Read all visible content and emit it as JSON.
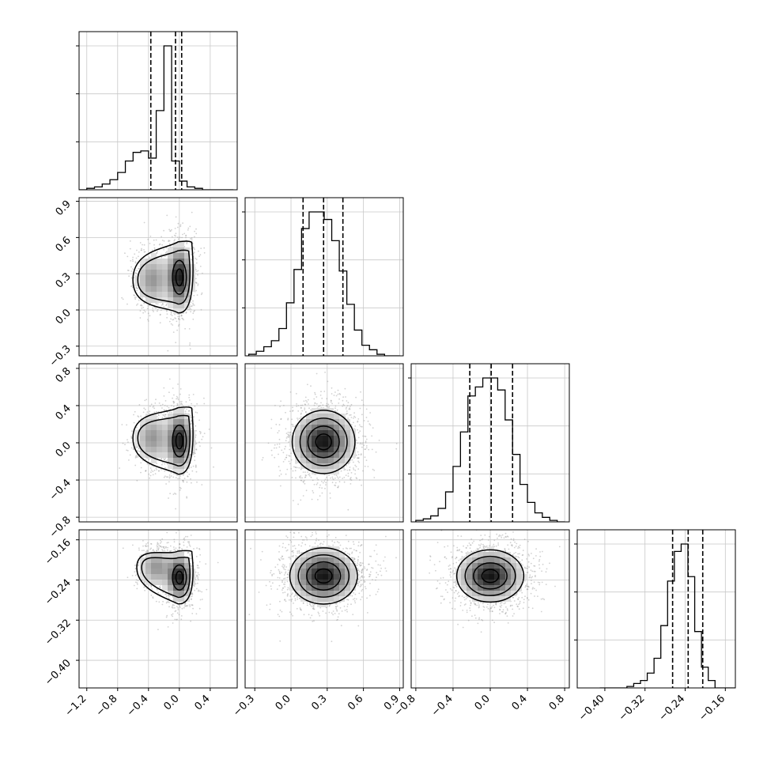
{
  "chart_data": {
    "type": "corner",
    "grid": true,
    "colors": {
      "points": "#9a9a9a",
      "contour": "#000000",
      "quantile": "#000000",
      "hist": "#000000",
      "grid": "#c8c8c8"
    },
    "params": [
      {
        "range": [
          -1.3,
          0.75
        ],
        "ticks": [
          "-1.2",
          "-0.8",
          "-0.4",
          "0.0",
          "0.4"
        ],
        "tick_values": [
          -1.2,
          -0.8,
          -0.4,
          0.0,
          0.4
        ],
        "quantiles": [
          -0.37,
          -0.05,
          0.03
        ],
        "hist": {
          "edges_start": -1.3,
          "edges_step": 0.1,
          "counts": [
            0,
            1,
            2,
            4,
            7,
            12,
            20,
            26,
            27,
            22,
            55,
            100,
            20,
            6,
            2,
            1,
            0,
            0,
            0,
            0
          ]
        }
      },
      {
        "range": [
          -0.38,
          0.93
        ],
        "ticks": [
          "-0.3",
          "0.0",
          "0.3",
          "0.6",
          "0.9"
        ],
        "tick_values": [
          -0.3,
          0.0,
          0.3,
          0.6,
          0.9
        ],
        "quantiles": [
          0.1,
          0.27,
          0.43
        ],
        "hist": {
          "edges_start": -0.35,
          "edges_step": 0.0625,
          "counts": [
            1,
            3,
            6,
            10,
            18,
            35,
            57,
            84,
            95,
            95,
            90,
            76,
            56,
            34,
            17,
            7,
            4,
            1,
            0,
            0
          ]
        }
      },
      {
        "range": [
          -0.85,
          0.85
        ],
        "ticks": [
          "-0.8",
          "-0.4",
          "0.0",
          "0.4",
          "0.8"
        ],
        "tick_values": [
          -0.8,
          -0.4,
          0.0,
          0.4,
          0.8
        ],
        "quantiles": [
          -0.22,
          0.01,
          0.24
        ],
        "hist": {
          "edges_start": -0.8,
          "edges_step": 0.08,
          "counts": [
            1,
            2,
            4,
            9,
            20,
            37,
            60,
            84,
            90,
            96,
            96,
            88,
            68,
            45,
            25,
            13,
            6,
            3,
            1,
            0
          ]
        }
      },
      {
        "range": [
          -0.455,
          -0.14
        ],
        "ticks": [
          "-0.40",
          "-0.32",
          "-0.24",
          "-0.16"
        ],
        "tick_values": [
          -0.4,
          -0.32,
          -0.24,
          -0.16
        ],
        "quantiles": [
          -0.265,
          -0.234,
          -0.205
        ],
        "hist": {
          "edges_start": -0.41,
          "edges_step": 0.0135,
          "counts": [
            0,
            0,
            0,
            0,
            1,
            3,
            5,
            10,
            20,
            42,
            72,
            92,
            97,
            75,
            38,
            14,
            5,
            0,
            0,
            0
          ]
        }
      }
    ],
    "pairs": [
      {
        "row": 1,
        "col": 0,
        "x_center": 0.0,
        "y_center": 0.27,
        "sx": 0.09,
        "sy": 0.14,
        "tail_x": -0.35,
        "tail_y": 0.25
      },
      {
        "row": 2,
        "col": 0,
        "x_center": 0.0,
        "y_center": 0.02,
        "sx": 0.09,
        "sy": 0.17,
        "tail_x": -0.35,
        "tail_y": 0.05
      },
      {
        "row": 2,
        "col": 1,
        "x_center": 0.27,
        "y_center": 0.01,
        "sx": 0.13,
        "sy": 0.17
      },
      {
        "row": 3,
        "col": 0,
        "x_center": 0.0,
        "y_center": -0.235,
        "sx": 0.09,
        "sy": 0.025,
        "tail_x": -0.3,
        "tail_y": -0.215
      },
      {
        "row": 3,
        "col": 1,
        "x_center": 0.27,
        "y_center": -0.232,
        "sx": 0.14,
        "sy": 0.028
      },
      {
        "row": 3,
        "col": 2,
        "x_center": 0.0,
        "y_center": -0.232,
        "sx": 0.18,
        "sy": 0.026
      }
    ]
  }
}
